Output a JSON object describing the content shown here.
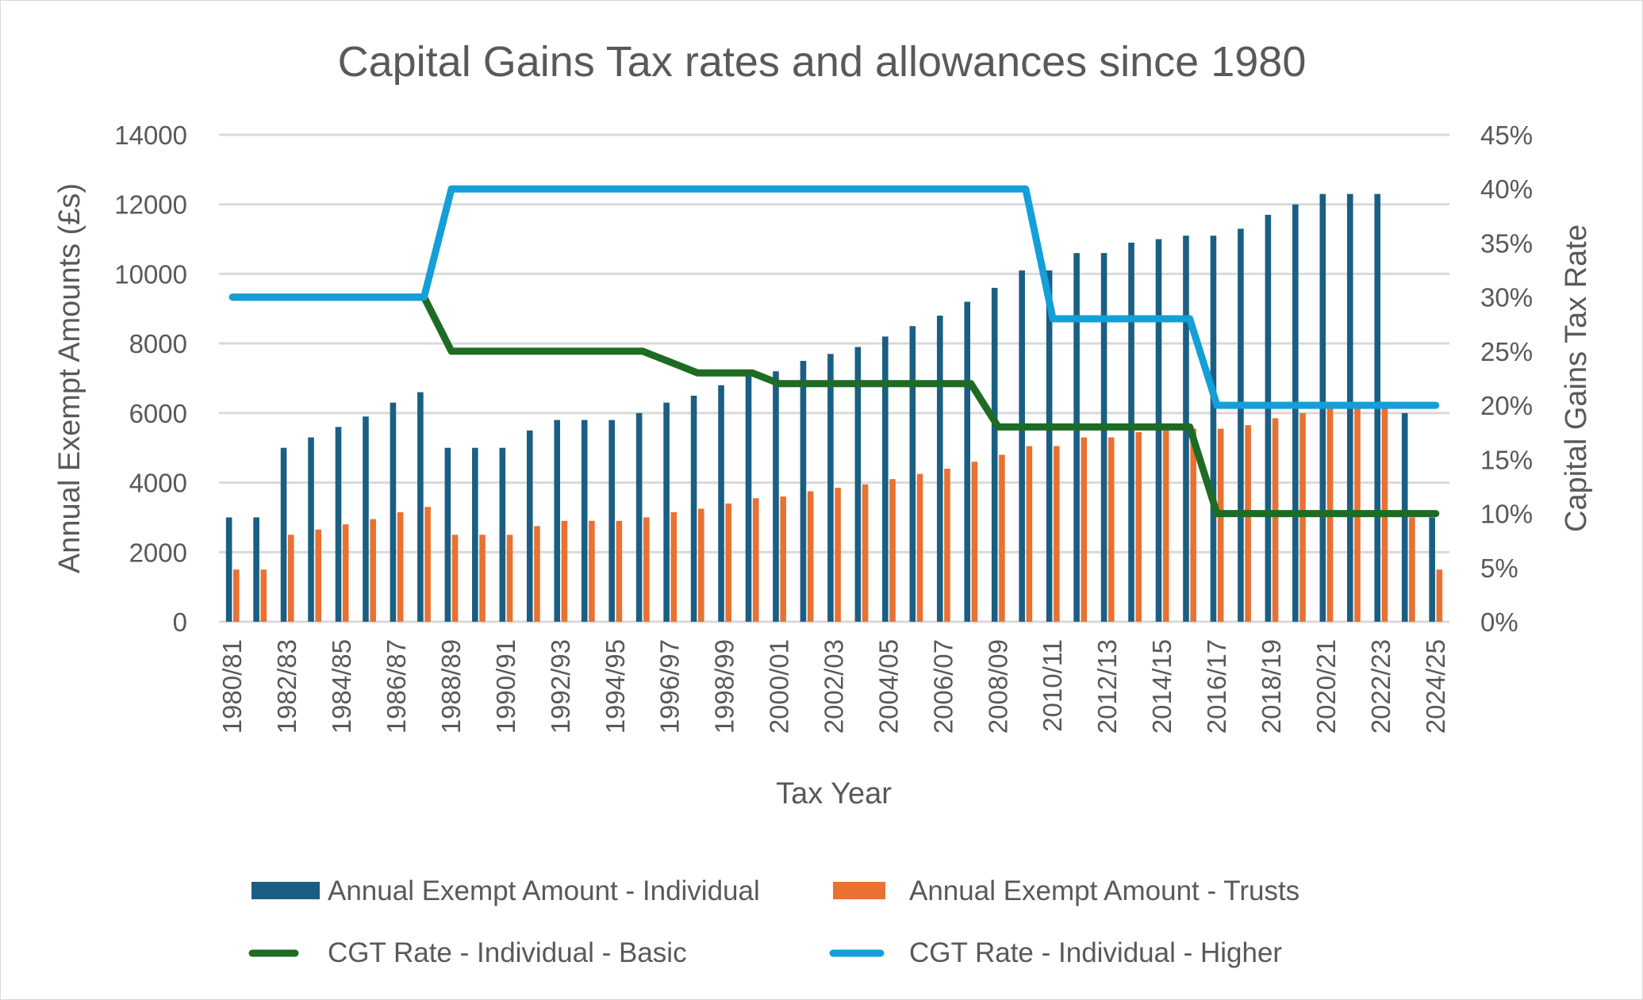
{
  "chart_data": {
    "type": "bar",
    "title": "Capital Gains Tax rates and allowances since 1980",
    "xlabel": "Tax Year",
    "ylabel": "Annual Exempt Amounts (£s)",
    "y2label": "Capital Gains Tax Rate",
    "ylim": [
      0,
      14000
    ],
    "y2lim": [
      0,
      45
    ],
    "yticks": [
      "0",
      "2000",
      "4000",
      "6000",
      "8000",
      "10000",
      "12000",
      "14000"
    ],
    "y2ticks": [
      "0%",
      "5%",
      "10%",
      "15%",
      "20%",
      "25%",
      "30%",
      "35%",
      "40%",
      "45%"
    ],
    "grid": true,
    "legend_position": "bottom",
    "categories": [
      "1980/81",
      "1981/82",
      "1982/83",
      "1983/84",
      "1984/85",
      "1985/86",
      "1986/87",
      "1987/88",
      "1988/89",
      "1989/90",
      "1990/91",
      "1991/92",
      "1992/93",
      "1993/94",
      "1994/95",
      "1995/96",
      "1996/97",
      "1997/98",
      "1998/99",
      "1999/00",
      "2000/01",
      "2001/02",
      "2002/03",
      "2003/04",
      "2004/05",
      "2005/06",
      "2006/07",
      "2007/08",
      "2008/09",
      "2009/10",
      "2010/11",
      "2011/12",
      "2012/13",
      "2013/14",
      "2014/15",
      "2015/16",
      "2016/17",
      "2017/18",
      "2018/19",
      "2019/20",
      "2020/21",
      "2021/22",
      "2022/23",
      "2023/24",
      "2024/25"
    ],
    "xtick_labels_shown": [
      "1980/81",
      "1982/83",
      "1984/85",
      "1986/87",
      "1988/89",
      "1990/91",
      "1992/93",
      "1994/95",
      "1996/97",
      "1998/99",
      "2000/01",
      "2002/03",
      "2004/05",
      "2006/07",
      "2008/09",
      "2010/11",
      "2012/13",
      "2014/15",
      "2016/17",
      "2018/19",
      "2020/21",
      "2022/23",
      "2024/25"
    ],
    "series": [
      {
        "name": "Annual Exempt Amount - Individual",
        "type": "bar",
        "axis": "left",
        "color": "#1a5f83",
        "values": [
          3000,
          3000,
          5000,
          5300,
          5600,
          5900,
          6300,
          6600,
          5000,
          5000,
          5000,
          5500,
          5800,
          5800,
          5800,
          6000,
          6300,
          6500,
          6800,
          7100,
          7200,
          7500,
          7700,
          7900,
          8200,
          8500,
          8800,
          9200,
          9600,
          10100,
          10100,
          10600,
          10600,
          10900,
          11000,
          11100,
          11100,
          11300,
          11700,
          12000,
          12300,
          12300,
          12300,
          6000,
          3000
        ]
      },
      {
        "name": "Annual Exempt Amount - Trusts",
        "type": "bar",
        "axis": "left",
        "color": "#e97132",
        "values": [
          1500,
          1500,
          2500,
          2650,
          2800,
          2950,
          3150,
          3300,
          2500,
          2500,
          2500,
          2750,
          2900,
          2900,
          2900,
          3000,
          3150,
          3250,
          3400,
          3550,
          3600,
          3750,
          3850,
          3950,
          4100,
          4250,
          4400,
          4600,
          4800,
          5050,
          5050,
          5300,
          5300,
          5450,
          5500,
          5550,
          5550,
          5650,
          5850,
          6000,
          6150,
          6150,
          6150,
          3000,
          1500
        ]
      },
      {
        "name": "CGT Rate - Individual - Basic",
        "type": "line",
        "axis": "right",
        "unit": "%",
        "color": "#1e6b24",
        "values": [
          30,
          30,
          30,
          30,
          30,
          30,
          30,
          30,
          25,
          25,
          25,
          25,
          25,
          25,
          25,
          25,
          24,
          23,
          23,
          23,
          22,
          22,
          22,
          22,
          22,
          22,
          22,
          22,
          18,
          18,
          18,
          18,
          18,
          18,
          18,
          18,
          10,
          10,
          10,
          10,
          10,
          10,
          10,
          10,
          10
        ]
      },
      {
        "name": "CGT Rate - Individual - Higher",
        "type": "line",
        "axis": "right",
        "unit": "%",
        "color": "#139fd8",
        "values": [
          30,
          30,
          30,
          30,
          30,
          30,
          30,
          30,
          40,
          40,
          40,
          40,
          40,
          40,
          40,
          40,
          40,
          40,
          40,
          40,
          40,
          40,
          40,
          40,
          40,
          40,
          40,
          40,
          40,
          40,
          28,
          28,
          28,
          28,
          28,
          28,
          20,
          20,
          20,
          20,
          20,
          20,
          20,
          20,
          20
        ]
      }
    ]
  }
}
